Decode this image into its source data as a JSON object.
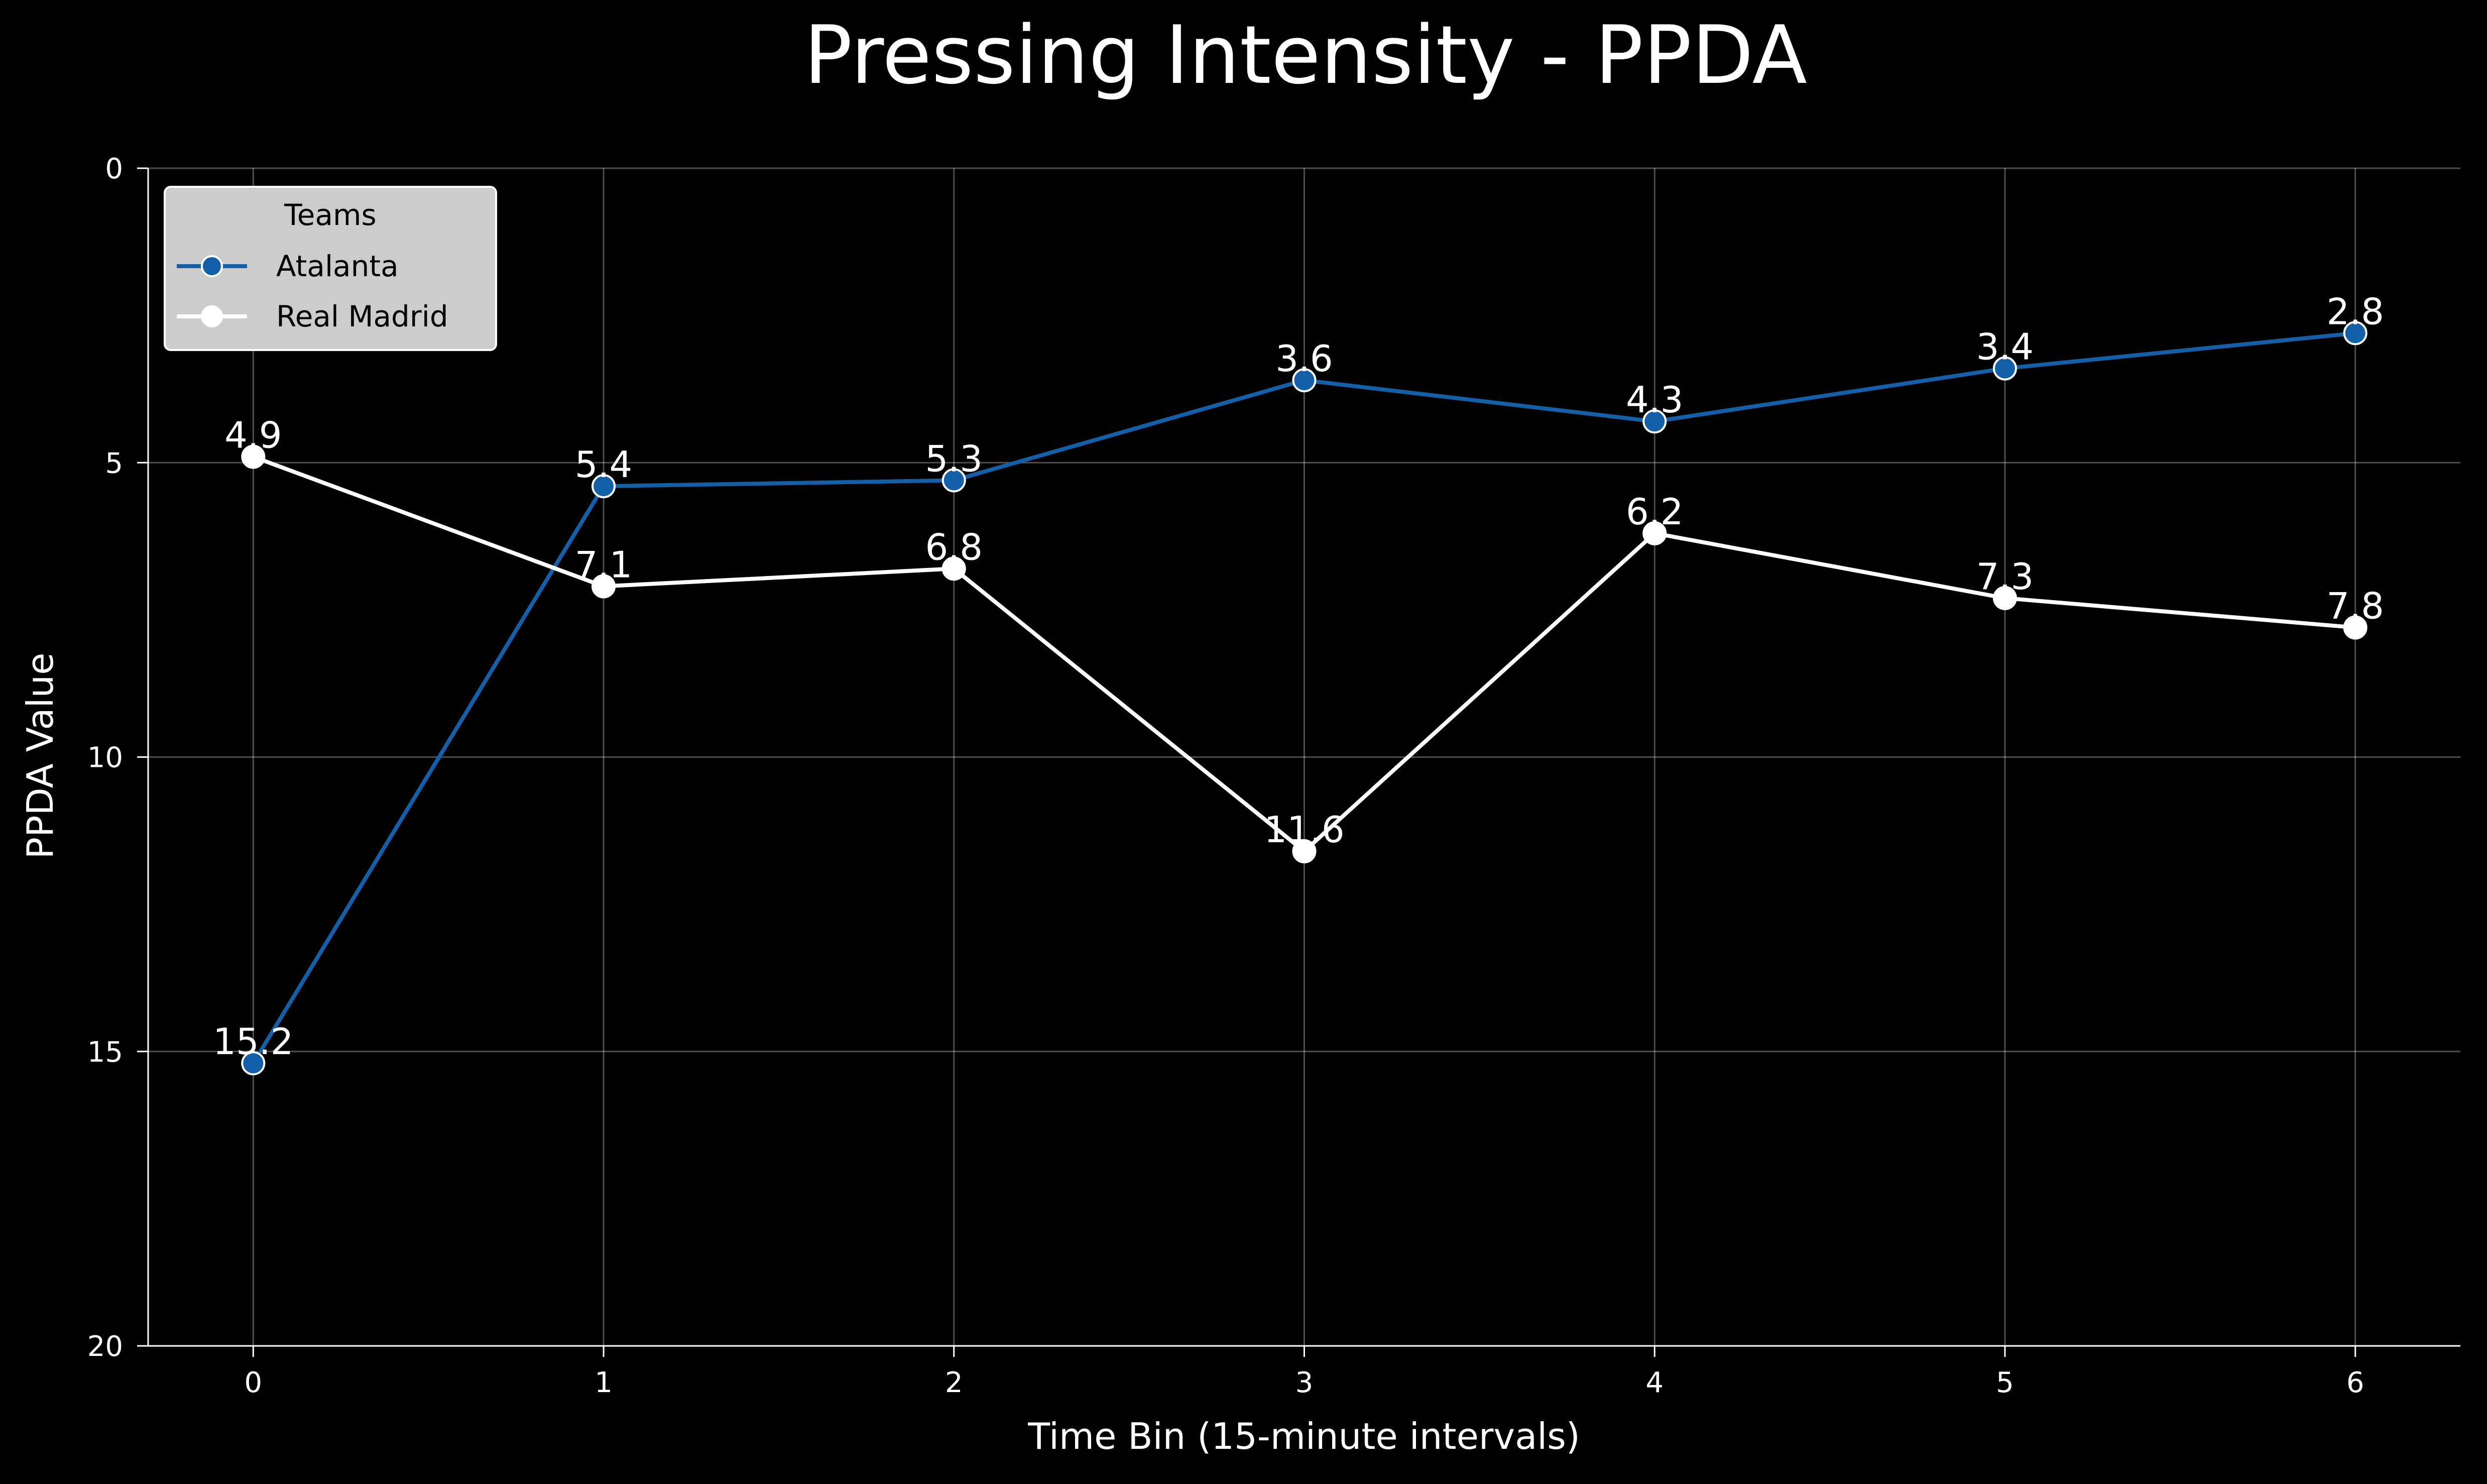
{
  "chart_data": {
    "type": "line",
    "title": "Pressing Intensity - PPDA",
    "xlabel": "Time Bin (15-minute intervals)",
    "ylabel": "PPDA Value",
    "x": [
      0,
      1,
      2,
      3,
      4,
      5,
      6
    ],
    "x_ticks": [
      "0",
      "1",
      "2",
      "3",
      "4",
      "5",
      "6"
    ],
    "xlim": [
      -0.3,
      6.3
    ],
    "ylim": [
      20,
      0
    ],
    "y_inverted": true,
    "y_ticks": [
      "0",
      "5",
      "10",
      "15",
      "20"
    ],
    "grid": true,
    "legend": {
      "title": "Teams",
      "placement": "top-left"
    },
    "series": [
      {
        "name": "Atalanta",
        "color": "#1460a8",
        "values": [
          15.2,
          5.4,
          5.3,
          3.6,
          4.3,
          3.4,
          2.8
        ],
        "labels": [
          "15.2",
          "5.4",
          "5.3",
          "3.6",
          "4.3",
          "3.4",
          "2.8"
        ]
      },
      {
        "name": "Real Madrid",
        "color": "#ffffff",
        "values": [
          4.9,
          7.1,
          6.8,
          11.6,
          6.2,
          7.3,
          7.8
        ],
        "labels": [
          "4.9",
          "7.1",
          "6.8",
          "11.6",
          "6.2",
          "7.3",
          "7.8"
        ]
      }
    ]
  }
}
